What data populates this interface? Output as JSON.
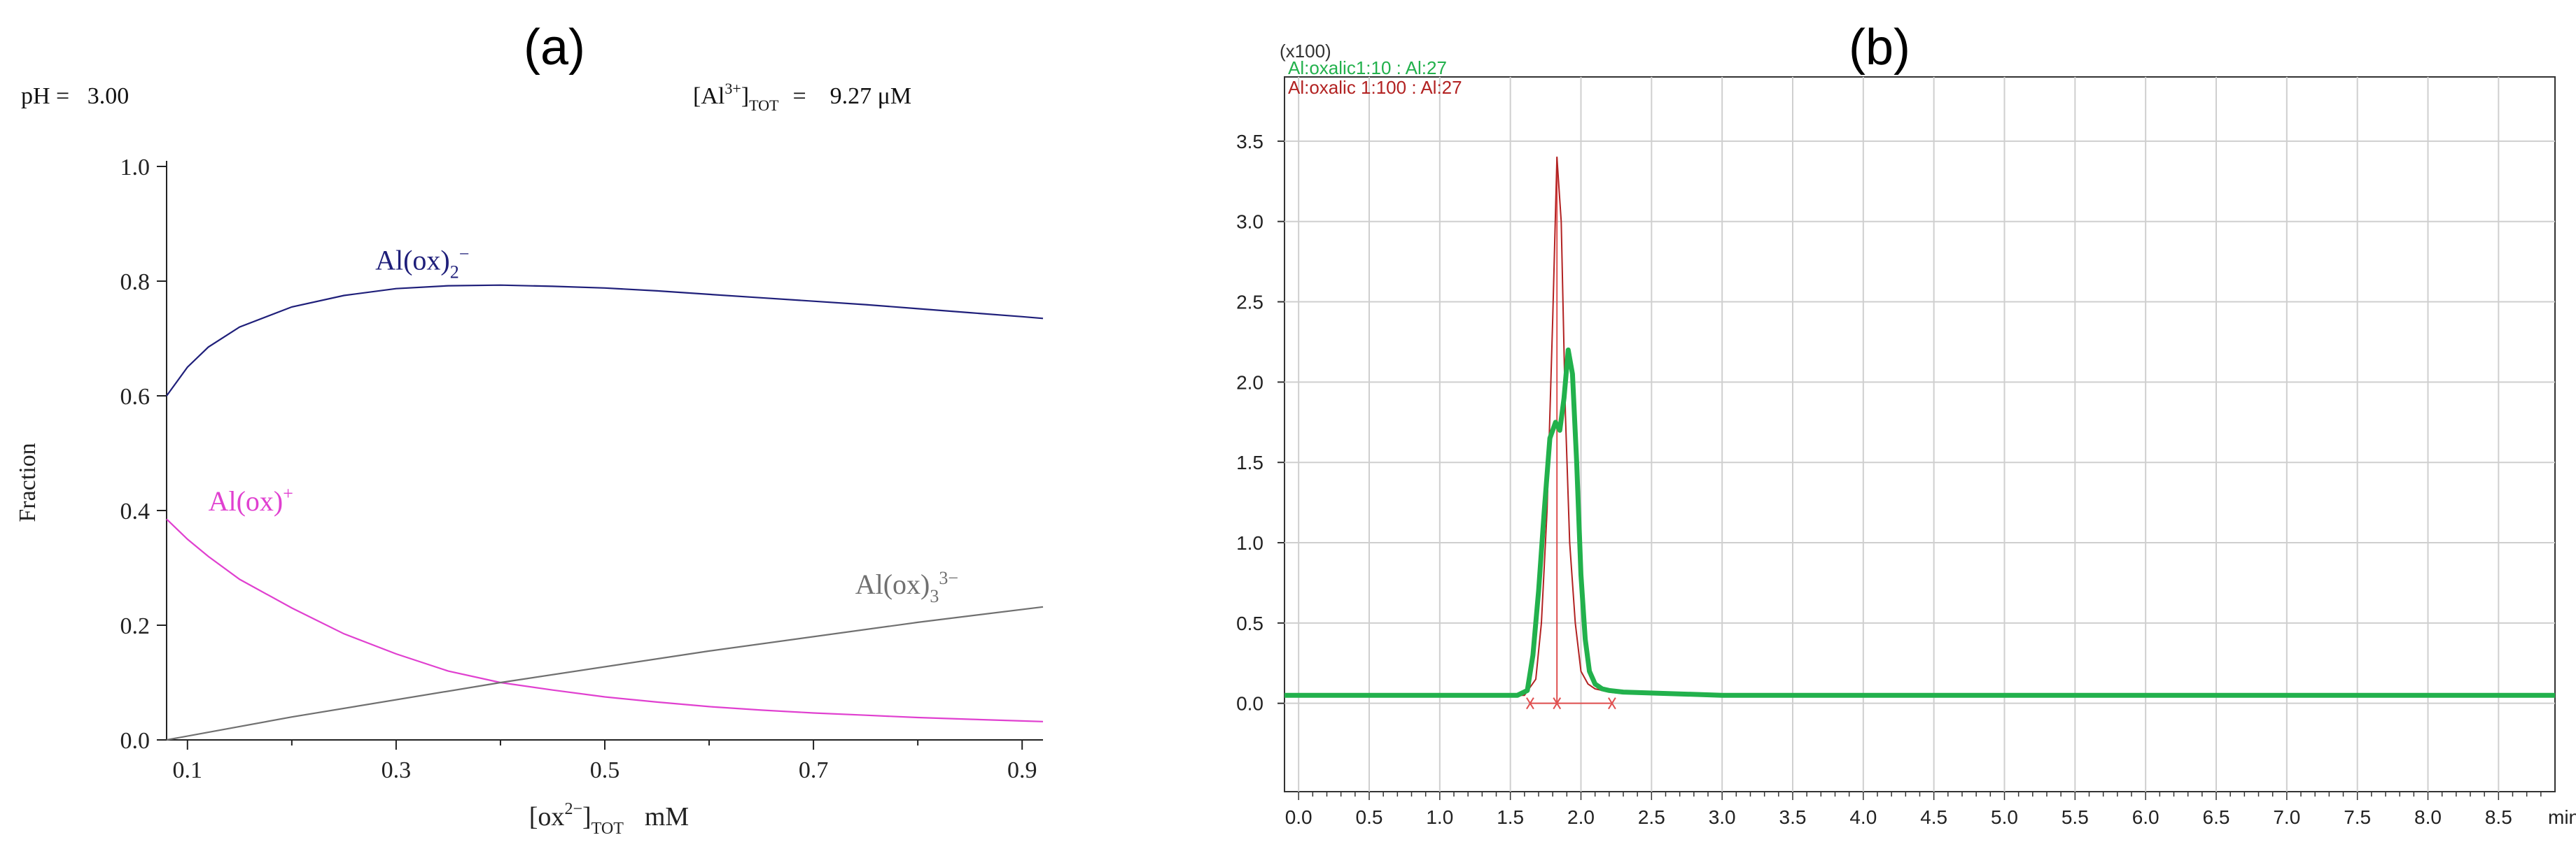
{
  "panel_a_label": "(a)",
  "panel_b_label": "(b)",
  "header_a": {
    "ph_text": "pH =   3.00",
    "al_prefix": "[Al",
    "al_sup": "3+",
    "al_suffix": "]",
    "al_sub": "TOT",
    "al_value": "=    9.27 μM"
  },
  "chart_data": [
    {
      "type": "line",
      "panel": "(a)",
      "ylabel": "Fraction",
      "xlabel_main": "[ox",
      "xlabel_sup": "2−",
      "xlabel_close": "]",
      "xlabel_sub": "TOT",
      "xlabel_unit": "mM",
      "xlim": [
        0.08,
        0.92
      ],
      "ylim": [
        0.0,
        1.0
      ],
      "xticks": [
        0.1,
        0.3,
        0.5,
        0.7,
        0.9
      ],
      "xtick_labels": [
        "0.1",
        "0.3",
        "0.5",
        "0.7",
        "0.9"
      ],
      "yticks": [
        0.0,
        0.2,
        0.4,
        0.6,
        0.8,
        1.0
      ],
      "ytick_labels": [
        "0.0",
        "0.2",
        "0.4",
        "0.6",
        "0.8",
        "1.0"
      ],
      "grid": false,
      "series": [
        {
          "name": "Al(ox)2−",
          "label_base": "Al(ox)",
          "label_sub": "2",
          "label_sup": "−",
          "color": "#1f1f7a",
          "x": [
            0.08,
            0.1,
            0.12,
            0.15,
            0.2,
            0.25,
            0.3,
            0.35,
            0.4,
            0.45,
            0.5,
            0.55,
            0.6,
            0.65,
            0.7,
            0.75,
            0.8,
            0.85,
            0.9,
            0.92
          ],
          "y": [
            0.6,
            0.65,
            0.685,
            0.72,
            0.755,
            0.775,
            0.787,
            0.792,
            0.793,
            0.791,
            0.788,
            0.783,
            0.777,
            0.771,
            0.765,
            0.759,
            0.752,
            0.745,
            0.738,
            0.735
          ]
        },
        {
          "name": "Al(ox)+",
          "label_base": "Al(ox)",
          "label_sub": "",
          "label_sup": "+",
          "color": "#e040d0",
          "x": [
            0.08,
            0.1,
            0.12,
            0.15,
            0.2,
            0.25,
            0.3,
            0.35,
            0.4,
            0.45,
            0.5,
            0.55,
            0.6,
            0.65,
            0.7,
            0.75,
            0.8,
            0.85,
            0.9,
            0.92
          ],
          "y": [
            0.385,
            0.35,
            0.32,
            0.28,
            0.23,
            0.185,
            0.15,
            0.12,
            0.1,
            0.087,
            0.075,
            0.066,
            0.058,
            0.052,
            0.047,
            0.043,
            0.039,
            0.036,
            0.033,
            0.032
          ]
        },
        {
          "name": "Al(ox)33−",
          "label_base": "Al(ox)",
          "label_sub": "3",
          "label_sup": "3−",
          "color": "#707070",
          "x": [
            0.08,
            0.2,
            0.4,
            0.6,
            0.8,
            0.92
          ],
          "y": [
            0.0,
            0.04,
            0.1,
            0.155,
            0.205,
            0.232
          ]
        }
      ]
    },
    {
      "type": "line",
      "panel": "(b)",
      "scale_label": "(x100)",
      "xunit": "min",
      "xlim": [
        -0.1,
        8.9
      ],
      "ylim": [
        -0.55,
        3.9
      ],
      "xticks": [
        0.0,
        0.5,
        1.0,
        1.5,
        2.0,
        2.5,
        3.0,
        3.5,
        4.0,
        4.5,
        5.0,
        5.5,
        6.0,
        6.5,
        7.0,
        7.5,
        8.0,
        8.5
      ],
      "xtick_labels": [
        "0.0",
        "0.5",
        "1.0",
        "1.5",
        "2.0",
        "2.5",
        "3.0",
        "3.5",
        "4.0",
        "4.5",
        "5.0",
        "5.5",
        "6.0",
        "6.5",
        "7.0",
        "7.5",
        "8.0",
        "8.5"
      ],
      "yticks": [
        0.0,
        0.5,
        1.0,
        1.5,
        2.0,
        2.5,
        3.0,
        3.5
      ],
      "ytick_labels": [
        "0.0",
        "0.5",
        "1.0",
        "1.5",
        "2.0",
        "2.5",
        "3.0",
        "3.5"
      ],
      "grid": true,
      "legend_position": "top-left",
      "series": [
        {
          "name": "Al:oxalic1:10 : Al:27",
          "color": "#22b14c",
          "x": [
            -0.1,
            1.4,
            1.55,
            1.62,
            1.66,
            1.7,
            1.74,
            1.78,
            1.82,
            1.85,
            1.88,
            1.91,
            1.94,
            1.97,
            2.0,
            2.03,
            2.06,
            2.1,
            2.15,
            2.2,
            2.3,
            3.0,
            5.0,
            8.9
          ],
          "y": [
            0.05,
            0.05,
            0.05,
            0.08,
            0.3,
            0.7,
            1.2,
            1.65,
            1.75,
            1.7,
            1.9,
            2.2,
            2.05,
            1.5,
            0.8,
            0.4,
            0.2,
            0.12,
            0.09,
            0.08,
            0.07,
            0.05,
            0.05,
            0.05
          ]
        },
        {
          "name": "Al:oxalic 1:100 : Al:27",
          "color": "#b22222",
          "x": [
            -0.1,
            1.6,
            1.68,
            1.72,
            1.76,
            1.8,
            1.83,
            1.86,
            1.89,
            1.92,
            1.96,
            2.0,
            2.05,
            2.1,
            2.2,
            2.3,
            8.9
          ],
          "y": [
            0.05,
            0.05,
            0.15,
            0.5,
            1.2,
            2.4,
            3.4,
            3.0,
            1.8,
            1.0,
            0.5,
            0.2,
            0.12,
            0.09,
            0.07,
            0.06,
            0.05
          ]
        }
      ],
      "integration_markers": {
        "color": "#e05050",
        "baseline_y": 0.0,
        "x_start": 1.64,
        "x_split": 1.83,
        "x_end": 2.22
      }
    }
  ]
}
